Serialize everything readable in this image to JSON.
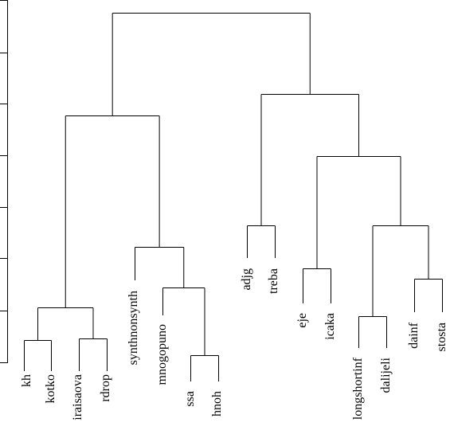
{
  "diagram": {
    "type": "dendrogram",
    "leaves": [
      "kh",
      "kotko",
      "iraisaova",
      "rdrop",
      "synthnonsynth",
      "mnogopuno",
      "ssa",
      "hnoh",
      "adjg",
      "treba",
      "eje",
      "icaka",
      "longshortinf",
      "dalijeli",
      "dainf",
      "stosta"
    ],
    "tree": {
      "children": [
        {
          "children": [
            {
              "children": [
                {
                  "children": [
                    "kh",
                    "kotko"
                  ]
                },
                {
                  "children": [
                    "iraisaova",
                    "rdrop"
                  ]
                }
              ]
            },
            {
              "children": [
                "synthnonsynth",
                {
                  "children": [
                    "mnogopuno",
                    {
                      "children": [
                        "ssa",
                        "hnoh"
                      ]
                    }
                  ]
                }
              ]
            }
          ]
        },
        {
          "children": [
            {
              "children": [
                "adjg",
                "treba"
              ]
            },
            {
              "children": [
                {
                  "children": [
                    "eje",
                    "icaka"
                  ]
                },
                {
                  "children": [
                    {
                      "children": [
                        "longshortinf",
                        "dalijeli"
                      ]
                    },
                    {
                      "children": [
                        "dainf",
                        "stosta"
                      ]
                    }
                  ]
                }
              ]
            }
          ]
        }
      ]
    },
    "colors": {
      "line": "#000000",
      "text": "#000000",
      "background": "#ffffff"
    }
  }
}
